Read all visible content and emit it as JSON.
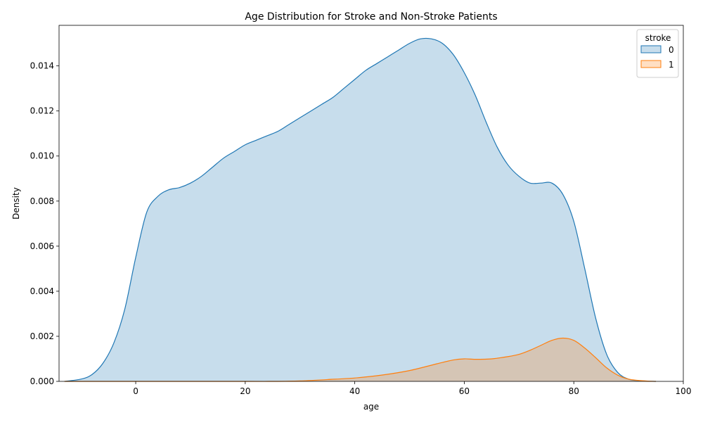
{
  "chart_data": {
    "type": "area",
    "title": "Age Distribution for Stroke and Non-Stroke Patients",
    "xlabel": "age",
    "ylabel": "Density",
    "xlim": [
      -14,
      100
    ],
    "ylim": [
      0,
      0.0158
    ],
    "x_ticks": [
      0,
      20,
      40,
      60,
      80,
      100
    ],
    "x_tick_labels": [
      "0",
      "20",
      "40",
      "60",
      "80",
      "100"
    ],
    "y_ticks": [
      0,
      0.002,
      0.004,
      0.006,
      0.008,
      0.01,
      0.012,
      0.014
    ],
    "y_tick_labels": [
      "0.000",
      "0.002",
      "0.004",
      "0.006",
      "0.008",
      "0.010",
      "0.012",
      "0.014"
    ],
    "grid": false,
    "legend": {
      "title": "stroke",
      "placement": "top-right",
      "entries": [
        "0",
        "1"
      ]
    },
    "series": [
      {
        "name": "0",
        "color": "#1f77b4",
        "fill": "#1f77b4",
        "fill_opacity": 0.25,
        "x": [
          -13,
          -10,
          -8,
          -6,
          -4,
          -2,
          0,
          2,
          4,
          6,
          8,
          10,
          12,
          14,
          16,
          18,
          20,
          22,
          24,
          26,
          28,
          30,
          32,
          34,
          36,
          38,
          40,
          42,
          44,
          46,
          48,
          50,
          52,
          54,
          56,
          58,
          60,
          62,
          64,
          66,
          68,
          70,
          72,
          74,
          76,
          78,
          80,
          82,
          84,
          86,
          88,
          90,
          92,
          95
        ],
        "y": [
          0.0,
          0.0001,
          0.0003,
          0.0008,
          0.0017,
          0.0032,
          0.0055,
          0.0075,
          0.0082,
          0.0085,
          0.0086,
          0.0088,
          0.0091,
          0.0095,
          0.0099,
          0.0102,
          0.0105,
          0.0107,
          0.0109,
          0.0111,
          0.0114,
          0.0117,
          0.012,
          0.0123,
          0.0126,
          0.013,
          0.0134,
          0.0138,
          0.0141,
          0.0144,
          0.0147,
          0.015,
          0.0152,
          0.0152,
          0.015,
          0.0145,
          0.0137,
          0.0127,
          0.0115,
          0.0104,
          0.0096,
          0.0091,
          0.0088,
          0.0088,
          0.0088,
          0.0083,
          0.0071,
          0.005,
          0.0028,
          0.0012,
          0.0004,
          0.0001,
          3e-05,
          0.0
        ]
      },
      {
        "name": "1",
        "color": "#ff7f0e",
        "fill": "#ff7f0e",
        "fill_opacity": 0.25,
        "x": [
          -13,
          0,
          10,
          20,
          25,
          30,
          35,
          40,
          45,
          50,
          55,
          58,
          60,
          62,
          65,
          68,
          70,
          72,
          74,
          76,
          78,
          80,
          82,
          84,
          86,
          88,
          90,
          93,
          95
        ],
        "y": [
          0.0,
          0.0,
          0.0,
          0.0,
          0.0,
          2e-05,
          8e-05,
          0.00015,
          0.00028,
          0.00048,
          0.00078,
          0.00095,
          0.001,
          0.00098,
          0.001,
          0.0011,
          0.0012,
          0.00138,
          0.0016,
          0.00182,
          0.00192,
          0.00182,
          0.00148,
          0.00105,
          0.0006,
          0.00028,
          0.0001,
          2e-05,
          0.0
        ]
      }
    ]
  }
}
